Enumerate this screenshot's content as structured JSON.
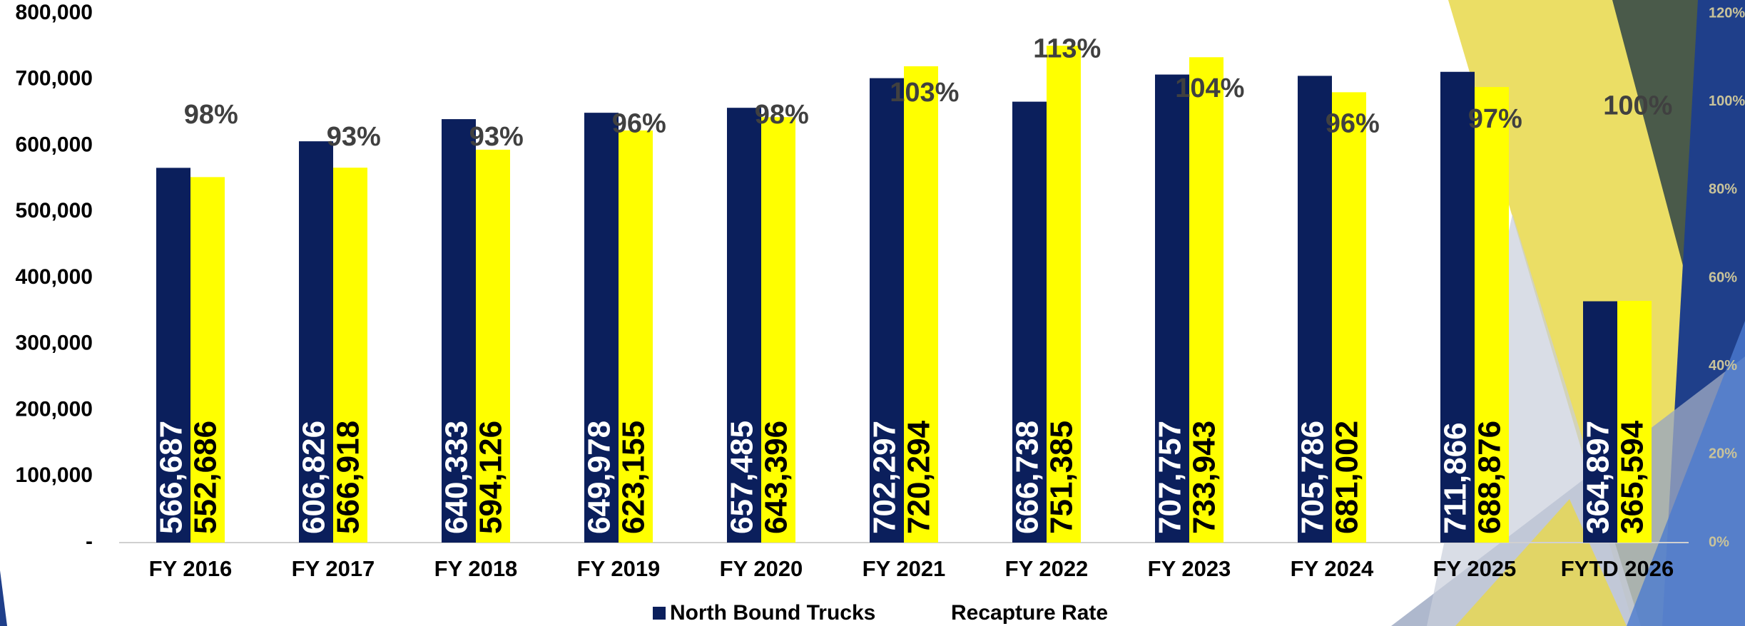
{
  "chart_data": {
    "type": "bar",
    "categories": [
      "FY 2016",
      "FY 2017",
      "FY 2018",
      "FY 2019",
      "FY 2020",
      "FY 2021",
      "FY 2022",
      "FY 2023",
      "FY 2024",
      "FY 2025",
      "FYTD 2026"
    ],
    "series": [
      {
        "name": "North Bound Trucks",
        "color": "#0b1f5c",
        "values": [
          566687,
          606826,
          640333,
          649978,
          657485,
          702297,
          666738,
          707757,
          705786,
          711866,
          364897
        ],
        "value_labels": [
          "566,687",
          "606,826",
          "640,333",
          "649,978",
          "657,485",
          "702,297",
          "666,738",
          "707,757",
          "705,786",
          "711,866",
          "364,897"
        ]
      },
      {
        "color": "#ffff00",
        "values": [
          552686,
          566918,
          594126,
          623155,
          643396,
          720294,
          751385,
          733943,
          681002,
          688876,
          365594
        ],
        "value_labels": [
          "552,686",
          "566,918",
          "594,126",
          "623,155",
          "643,396",
          "720,294",
          "751,385",
          "733,943",
          "681,002",
          "688,876",
          "365,594"
        ]
      },
      {
        "name": "Recapture Rate",
        "axis": "y2",
        "values": [
          98,
          93,
          93,
          96,
          98,
          103,
          113,
          104,
          96,
          97,
          100
        ],
        "value_labels": [
          "98%",
          "93%",
          "93%",
          "96%",
          "98%",
          "103%",
          "113%",
          "104%",
          "96%",
          "97%",
          "100%"
        ]
      }
    ],
    "ylim": [
      0,
      800000
    ],
    "yticks": [
      {
        "value": 0,
        "label": "-"
      },
      {
        "value": 100000,
        "label": "100,000"
      },
      {
        "value": 200000,
        "label": "200,000"
      },
      {
        "value": 300000,
        "label": "300,000"
      },
      {
        "value": 400000,
        "label": "400,000"
      },
      {
        "value": 500000,
        "label": "500,000"
      },
      {
        "value": 600000,
        "label": "600,000"
      },
      {
        "value": 700000,
        "label": "700,000"
      },
      {
        "value": 800000,
        "label": "800,000"
      }
    ],
    "y2lim": [
      0,
      120
    ],
    "y2ticks": [
      {
        "value": 0,
        "label": "0%"
      },
      {
        "value": 20,
        "label": "20%"
      },
      {
        "value": 40,
        "label": "40%"
      },
      {
        "value": 60,
        "label": "60%"
      },
      {
        "value": 80,
        "label": "80%"
      },
      {
        "value": 100,
        "label": "100%"
      },
      {
        "value": 120,
        "label": "120%"
      }
    ],
    "legend": "bottom"
  }
}
